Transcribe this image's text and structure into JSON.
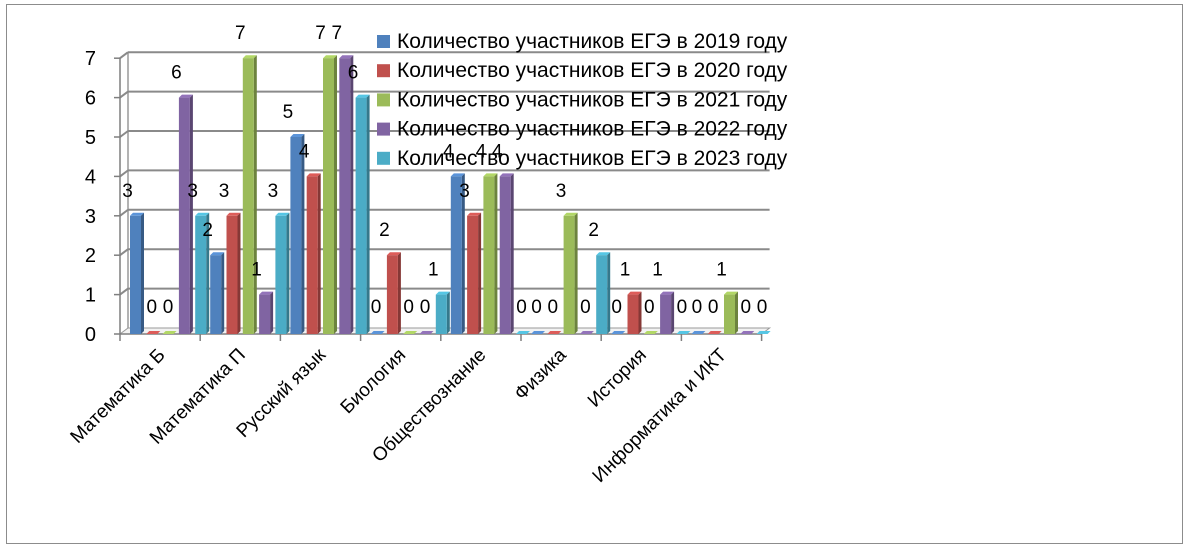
{
  "chart_data": {
    "type": "bar",
    "categories": [
      "Математика Б",
      "Математика П",
      "Русский язык",
      "Биология",
      "Обществознание",
      "Физика",
      "История",
      "Информатика и ИКТ"
    ],
    "series": [
      {
        "name": "Количество участников ЕГЭ в 2019 году",
        "color": "#4f81bd",
        "values": [
          3,
          2,
          5,
          0,
          4,
          0,
          0,
          0
        ]
      },
      {
        "name": "Количество участников ЕГЭ в 2020 году",
        "color": "#c0504d",
        "values": [
          0,
          3,
          4,
          2,
          3,
          0,
          1,
          0
        ]
      },
      {
        "name": "Количество участников ЕГЭ в 2021 году",
        "color": "#9bbb59",
        "values": [
          0,
          7,
          7,
          0,
          4,
          3,
          0,
          1
        ]
      },
      {
        "name": "Количество участников ЕГЭ в 2022 году",
        "color": "#8064a2",
        "values": [
          6,
          1,
          7,
          0,
          4,
          0,
          1,
          0
        ]
      },
      {
        "name": "Количество участников ЕГЭ в 2023 году",
        "color": "#4bacc6",
        "values": [
          3,
          3,
          6,
          1,
          0,
          2,
          0,
          0
        ]
      }
    ],
    "yticks": [
      "0",
      "1",
      "2",
      "3",
      "4",
      "5",
      "6",
      "7"
    ],
    "ylim": [
      0,
      7
    ],
    "grid": true,
    "legend_position": "top-right",
    "title": "",
    "xlabel": "",
    "ylabel": ""
  }
}
